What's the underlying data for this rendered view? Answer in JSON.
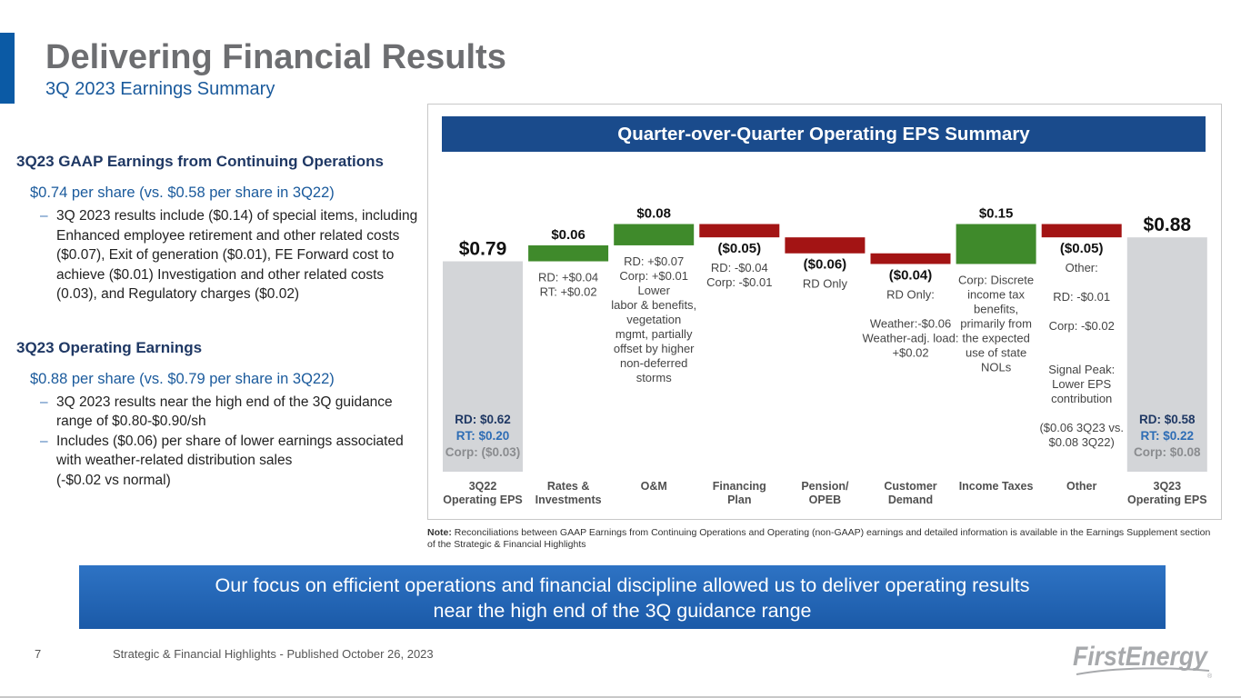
{
  "header": {
    "title_regular": "Delivering ",
    "title_bold": "Financial Results",
    "subtitle": "3Q 2023 Earnings Summary"
  },
  "gaap": {
    "heading": "3Q23 GAAP Earnings from Continuing Operations",
    "main": "$0.74 per share (vs. $0.58 per share in 3Q22)",
    "bullets": [
      "3Q 2023 results include ($0.14) of special items, including Enhanced employee retirement and other related costs ($0.07), Exit of generation ($0.01), FE Forward cost to achieve ($0.01) Investigation and other related costs (0.03), and Regulatory charges ($0.02)"
    ]
  },
  "operating": {
    "heading": "3Q23 Operating Earnings",
    "main": "$0.88 per share (vs. $0.79 per share in 3Q22)",
    "bullets": [
      "3Q 2023 results near the high end of the 3Q guidance range of $0.80-$0.90/sh",
      "Includes ($0.06) per share of lower earnings associated with weather-related distribution sales",
      "(-$0.02 vs normal)"
    ]
  },
  "chart_header": "Quarter-over-Quarter Operating EPS Summary",
  "chart_data": {
    "type": "waterfall",
    "title": "Quarter-over-Quarter Operating EPS Summary",
    "colors": {
      "total": "#d3d5d8",
      "increase": "#3f8a2b",
      "decrease": "#a31414"
    },
    "bars": [
      {
        "category": [
          "3Q22",
          "Operating EPS"
        ],
        "kind": "total",
        "value": 0.79,
        "label": "$0.79",
        "notes": [],
        "inside": [
          "RD: $0.62",
          "RT: $0.20",
          "Corp: ($0.03)"
        ]
      },
      {
        "category": [
          "Rates &",
          "Investments"
        ],
        "kind": "increase",
        "value": 0.06,
        "label": "$0.06",
        "notes": [
          "RD: +$0.04",
          "RT: +$0.02"
        ]
      },
      {
        "category": [
          "O&M"
        ],
        "kind": "increase",
        "value": 0.08,
        "label": "$0.08",
        "notes": [
          "RD: +$0.07",
          "Corp: +$0.01",
          "Lower",
          "labor & benefits,",
          "vegetation",
          "mgmt, partially",
          "offset by higher",
          "non-deferred",
          "storms"
        ]
      },
      {
        "category": [
          "Financing",
          "Plan"
        ],
        "kind": "decrease",
        "value": -0.05,
        "label": "($0.05)",
        "notes": [
          "RD: -$0.04",
          "Corp: -$0.01"
        ]
      },
      {
        "category": [
          "Pension/",
          "OPEB"
        ],
        "kind": "decrease",
        "value": -0.06,
        "label": "($0.06)",
        "notes": [
          "RD Only"
        ]
      },
      {
        "category": [
          "Customer",
          "Demand"
        ],
        "kind": "decrease",
        "value": -0.04,
        "label": "($0.04)",
        "notes": [
          "RD Only:",
          "",
          "Weather:-$0.06",
          "Weather-adj. load:",
          "+$0.02"
        ]
      },
      {
        "category": [
          "Income Taxes"
        ],
        "kind": "increase",
        "value": 0.15,
        "label": "$0.15",
        "notes": [
          "Corp: Discrete",
          "income tax",
          "benefits,",
          "primarily from",
          "the expected",
          "use of state",
          "NOLs"
        ]
      },
      {
        "category": [
          "Other"
        ],
        "kind": "decrease",
        "value": -0.05,
        "label": "($0.05)",
        "notes": [
          "Other:",
          "",
          "RD: -$0.01",
          "",
          "Corp: -$0.02",
          "",
          "",
          "Signal Peak:",
          "Lower EPS",
          "contribution",
          "",
          "($0.06 3Q23 vs.",
          "$0.08 3Q22)"
        ]
      },
      {
        "category": [
          "3Q23",
          "Operating EPS"
        ],
        "kind": "total",
        "value": 0.88,
        "label": "$0.88",
        "notes": [],
        "inside": [
          "RD: $0.58",
          "RT: $0.22",
          "Corp: $0.08"
        ]
      }
    ]
  },
  "note": {
    "label": "Note:",
    "text": " Reconciliations between GAAP Earnings from Continuing Operations and Operating (non-GAAP) earnings and detailed information is available in the Earnings Supplement section of the Strategic & Financial Highlights"
  },
  "banner": {
    "line1": "Our focus on efficient operations and financial discipline allowed us to deliver operating results",
    "line2": "near the high end of the 3Q guidance range"
  },
  "footer": {
    "page_number": "7",
    "text": "Strategic & Financial Highlights - Published October 26, 2023"
  },
  "logo": {
    "text": "FirstEnergy",
    "mark": "®"
  }
}
